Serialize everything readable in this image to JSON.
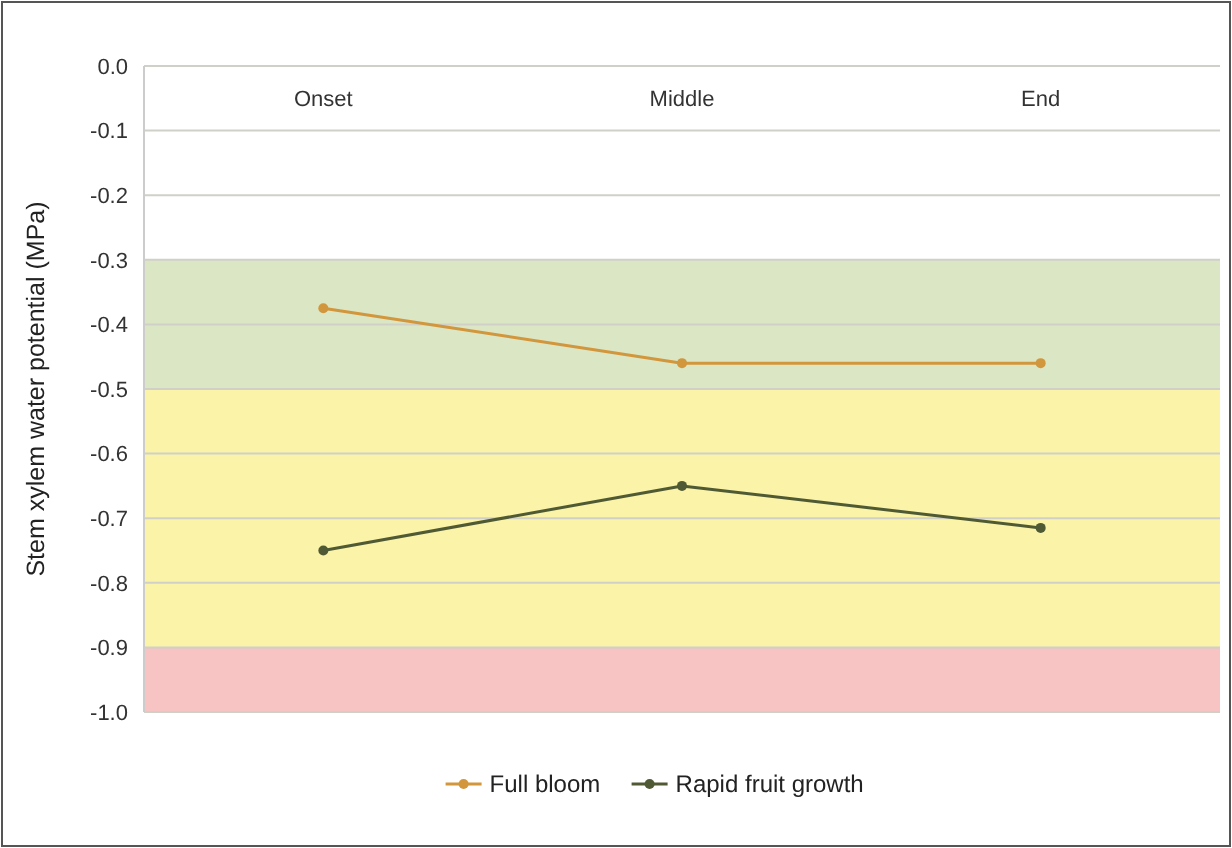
{
  "chart_data": {
    "type": "line",
    "ylabel": "Stem xylem water potential (MPa)",
    "categories": [
      "Onset",
      "Middle",
      "End"
    ],
    "series": [
      {
        "name": "Full bloom",
        "color": "#d2963c",
        "values": [
          -0.375,
          -0.46,
          -0.46
        ]
      },
      {
        "name": "Rapid fruit growth",
        "color": "#4f5a34",
        "values": [
          -0.75,
          -0.65,
          -0.715
        ]
      }
    ],
    "ylim": [
      -1.0,
      0
    ],
    "yticks": [
      {
        "value": 0,
        "label": "0.0"
      },
      {
        "value": -0.1,
        "label": "-0.1"
      },
      {
        "value": -0.2,
        "label": "-0.2"
      },
      {
        "value": -0.3,
        "label": "-0.3"
      },
      {
        "value": -0.4,
        "label": "-0.4"
      },
      {
        "value": -0.5,
        "label": "-0.5"
      },
      {
        "value": -0.6,
        "label": "-0.6"
      },
      {
        "value": -0.7,
        "label": "-0.7"
      },
      {
        "value": -0.8,
        "label": "-0.8"
      },
      {
        "value": -0.9,
        "label": "-0.9"
      },
      {
        "value": -1.0,
        "label": "-1.0"
      }
    ],
    "bands": [
      {
        "axis": "y",
        "from": -0.3,
        "to": -0.5,
        "color": "#dbe6c4"
      },
      {
        "axis": "y",
        "from": -0.5,
        "to": -0.9,
        "color": "#fbf3a8"
      },
      {
        "axis": "y",
        "from": -0.9,
        "to": -1.0,
        "color": "#f7c3c3"
      }
    ],
    "grid": "y",
    "legend": "bottom",
    "marker": "circle",
    "line_style": "solid"
  }
}
